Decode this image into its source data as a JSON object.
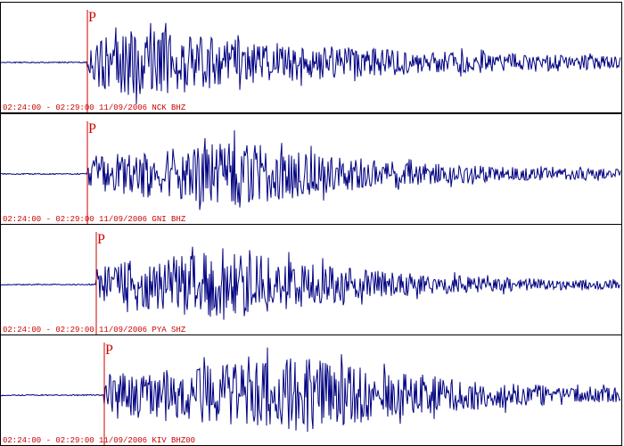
{
  "panels": [
    {
      "pick": "P",
      "label": "02:24:00 - 02:29:00 11/09/2006 NCK BHZ"
    },
    {
      "pick": "P",
      "label": "02:24:00 - 02:29:00 11/09/2006 GNI BHZ"
    },
    {
      "pick": "P",
      "label": "02:24:00 - 02:29:00 11/09/2006 PYA SHZ"
    },
    {
      "pick": "P",
      "label": "02:24:00 - 02:29:00 11/09/2006 KIV BHZ00"
    }
  ]
}
